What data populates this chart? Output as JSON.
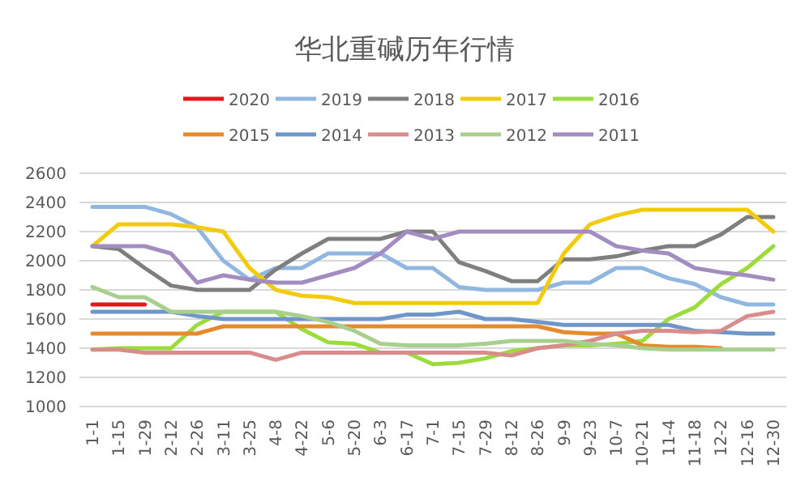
{
  "chart_data": {
    "type": "line",
    "title": "华北重碱历年行情",
    "categories": [
      "1-1",
      "1-15",
      "1-29",
      "2-12",
      "2-26",
      "3-11",
      "3-25",
      "4-8",
      "4-22",
      "5-6",
      "5-20",
      "6-3",
      "6-17",
      "7-1",
      "7-15",
      "7-29",
      "8-12",
      "8-26",
      "9-9",
      "9-23",
      "10-7",
      "10-21",
      "11-4",
      "11-18",
      "12-2",
      "12-16",
      "12-30"
    ],
    "ylim": [
      1000,
      2600
    ],
    "yticks": [
      1000,
      1200,
      1400,
      1600,
      1800,
      2000,
      2200,
      2400,
      2600
    ],
    "grid": "y",
    "legend": "top",
    "marker": "none",
    "series": [
      {
        "name": "2020",
        "color": "#e8131b",
        "values": [
          1700,
          1700,
          1700,
          null,
          null,
          null,
          null,
          null,
          null,
          null,
          null,
          null,
          null,
          null,
          null,
          null,
          null,
          null,
          null,
          null,
          null,
          null,
          null,
          null,
          null,
          null,
          null
        ]
      },
      {
        "name": "2019",
        "color": "#91b7e0",
        "values": [
          2370,
          2370,
          2370,
          2320,
          2230,
          2000,
          1870,
          1950,
          1950,
          2050,
          2050,
          2050,
          1950,
          1950,
          1820,
          1800,
          1800,
          1800,
          1850,
          1850,
          1950,
          1950,
          1880,
          1840,
          1750,
          1700,
          1700
        ]
      },
      {
        "name": "2018",
        "color": "#7f7f7f",
        "values": [
          2100,
          2080,
          1950,
          1830,
          1800,
          1800,
          1800,
          1940,
          2050,
          2150,
          2150,
          2150,
          2200,
          2200,
          1990,
          1930,
          1860,
          1860,
          2010,
          2010,
          2030,
          2070,
          2100,
          2100,
          2180,
          2300,
          2300
        ]
      },
      {
        "name": "2017",
        "color": "#f2cc0c",
        "values": [
          2100,
          2250,
          2250,
          2250,
          2230,
          2200,
          1950,
          1800,
          1760,
          1750,
          1710,
          1710,
          1710,
          1710,
          1710,
          1710,
          1710,
          1710,
          2050,
          2250,
          2310,
          2350,
          2350,
          2350,
          2350,
          2350,
          2200
        ]
      },
      {
        "name": "2016",
        "color": "#9bdc3c",
        "values": [
          1390,
          1400,
          1400,
          1400,
          1560,
          1650,
          1650,
          1650,
          1530,
          1440,
          1430,
          1370,
          1370,
          1290,
          1300,
          1330,
          1380,
          1400,
          1420,
          1420,
          1430,
          1450,
          1600,
          1680,
          1840,
          1950,
          2100
        ]
      },
      {
        "name": "2015",
        "color": "#e68a2e",
        "values": [
          1500,
          1500,
          1500,
          1500,
          1500,
          1550,
          1550,
          1550,
          1550,
          1550,
          1550,
          1550,
          1550,
          1550,
          1550,
          1550,
          1550,
          1550,
          1510,
          1500,
          1500,
          1420,
          1410,
          1410,
          1400,
          null,
          null
        ]
      },
      {
        "name": "2014",
        "color": "#6f96c9",
        "values": [
          1650,
          1650,
          1650,
          1650,
          1620,
          1600,
          1600,
          1600,
          1600,
          1600,
          1600,
          1600,
          1630,
          1630,
          1650,
          1600,
          1600,
          1580,
          1560,
          1560,
          1560,
          1560,
          1560,
          1520,
          1510,
          1500,
          1500
        ]
      },
      {
        "name": "2013",
        "color": "#d98c8c",
        "values": [
          1390,
          1390,
          1370,
          1370,
          1370,
          1370,
          1370,
          1320,
          1370,
          1370,
          1370,
          1370,
          1370,
          1370,
          1370,
          1370,
          1350,
          1400,
          1420,
          1450,
          1500,
          1520,
          1520,
          1510,
          1520,
          1620,
          1650
        ]
      },
      {
        "name": "2012",
        "color": "#a9cf8e",
        "values": [
          1820,
          1750,
          1750,
          1650,
          1650,
          1650,
          1650,
          1650,
          1620,
          1580,
          1520,
          1430,
          1420,
          1420,
          1420,
          1430,
          1450,
          1450,
          1450,
          1430,
          1420,
          1400,
          1390,
          1390,
          1390,
          1390,
          1390
        ]
      },
      {
        "name": "2011",
        "color": "#a38cc0",
        "values": [
          2100,
          2100,
          2100,
          2050,
          1850,
          1900,
          1870,
          1850,
          1850,
          1900,
          1950,
          2050,
          2200,
          2150,
          2200,
          2200,
          2200,
          2200,
          2200,
          2200,
          2100,
          2070,
          2050,
          1950,
          1920,
          1900,
          1870
        ]
      }
    ]
  }
}
